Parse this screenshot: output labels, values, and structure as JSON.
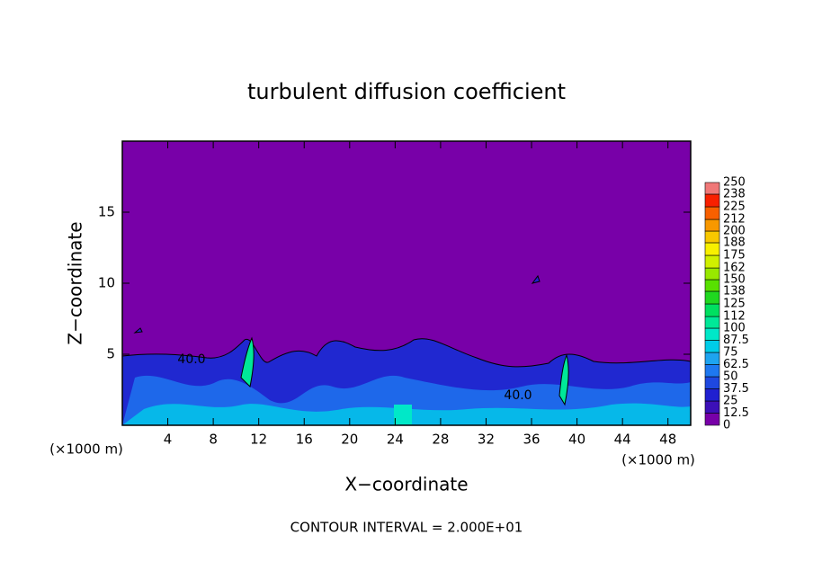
{
  "chart_data": {
    "type": "contour",
    "title": "turbulent diffusion coefficient",
    "x_label": "X−coordinate",
    "y_label": "Z−coordinate",
    "x_unit_label": "(×1000 m)",
    "xlim": [
      0,
      50
    ],
    "ylim": [
      0,
      20
    ],
    "xticks": [
      4,
      8,
      12,
      16,
      20,
      24,
      28,
      32,
      36,
      40,
      44,
      48
    ],
    "yticks": [
      5,
      10,
      15
    ],
    "annotations": [
      "40.0",
      "40.0"
    ],
    "footer": "CONTOUR INTERVAL = 2.000E+01",
    "colorbar": {
      "levels": [
        0,
        12.5,
        25,
        37.5,
        50,
        62.5,
        75,
        87.5,
        100,
        112,
        125,
        138,
        150,
        162,
        175,
        188,
        200,
        212,
        225,
        238,
        250
      ],
      "colors": [
        "#7800a8",
        "#3c10b8",
        "#2020d0",
        "#1e48e0",
        "#1e78f0",
        "#1ea4f0",
        "#00cce8",
        "#00e8c8",
        "#00e898",
        "#00e060",
        "#20d820",
        "#58e000",
        "#98e800",
        "#d0f000",
        "#f8f000",
        "#f8c800",
        "#f89800",
        "#f86000",
        "#f82000",
        "#f07878"
      ]
    }
  }
}
